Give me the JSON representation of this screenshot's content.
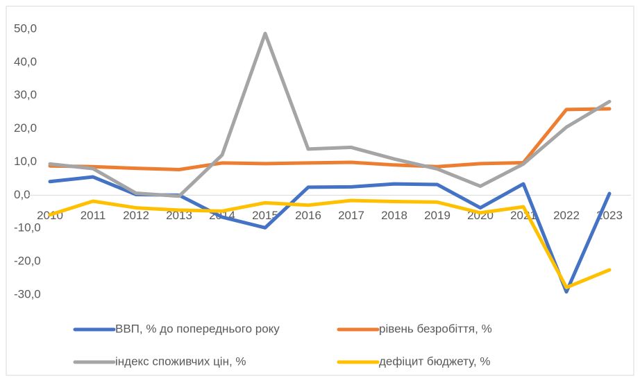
{
  "chart_data": {
    "type": "line",
    "categories": [
      "2010",
      "2011",
      "2012",
      "2013",
      "2014",
      "2015",
      "2016",
      "2017",
      "2018",
      "2019",
      "2020",
      "2021",
      "2022",
      "2023"
    ],
    "series": [
      {
        "name": "ВВП, % до попереднього року",
        "color": "#4472c4",
        "values": [
          4.1,
          5.5,
          0.2,
          0,
          -6.6,
          -9.8,
          2.4,
          2.5,
          3.4,
          3.2,
          -3.8,
          3.4,
          -29.1,
          0.5
        ]
      },
      {
        "name": "рівень безробіття, %",
        "color": "#ed7d31",
        "values": [
          8.8,
          8.6,
          8.1,
          7.7,
          9.7,
          9.5,
          9.7,
          9.9,
          9.1,
          8.6,
          9.5,
          9.8,
          25.8,
          26.0
        ]
      },
      {
        "name": "індекс споживчих цін, %",
        "color": "#a5a5a5",
        "values": [
          9.4,
          8.0,
          0.6,
          -0.3,
          12.1,
          48.7,
          13.9,
          14.4,
          10.9,
          7.9,
          2.7,
          9.4,
          20.5,
          28.2
        ]
      },
      {
        "name": "дефіцит бюджету, %",
        "color": "#ffc000",
        "values": [
          -5.9,
          -1.8,
          -3.8,
          -4.5,
          -4.8,
          -2.3,
          -3.0,
          -1.6,
          -1.9,
          -2.1,
          -5.3,
          -3.5,
          -27.8,
          -22.5
        ]
      }
    ],
    "ylim": [
      -30,
      50
    ],
    "yticks": [
      {
        "value": -30,
        "label": "-30,0"
      },
      {
        "value": -20,
        "label": "-20,0"
      },
      {
        "value": -10,
        "label": "-10,0"
      },
      {
        "value": 0,
        "label": "0,0"
      },
      {
        "value": 10,
        "label": "10,0"
      },
      {
        "value": 20,
        "label": "20,0"
      },
      {
        "value": 30,
        "label": "30,0"
      },
      {
        "value": 40,
        "label": "40,0"
      },
      {
        "value": 50,
        "label": "50,0"
      }
    ],
    "legend": "bottom"
  }
}
